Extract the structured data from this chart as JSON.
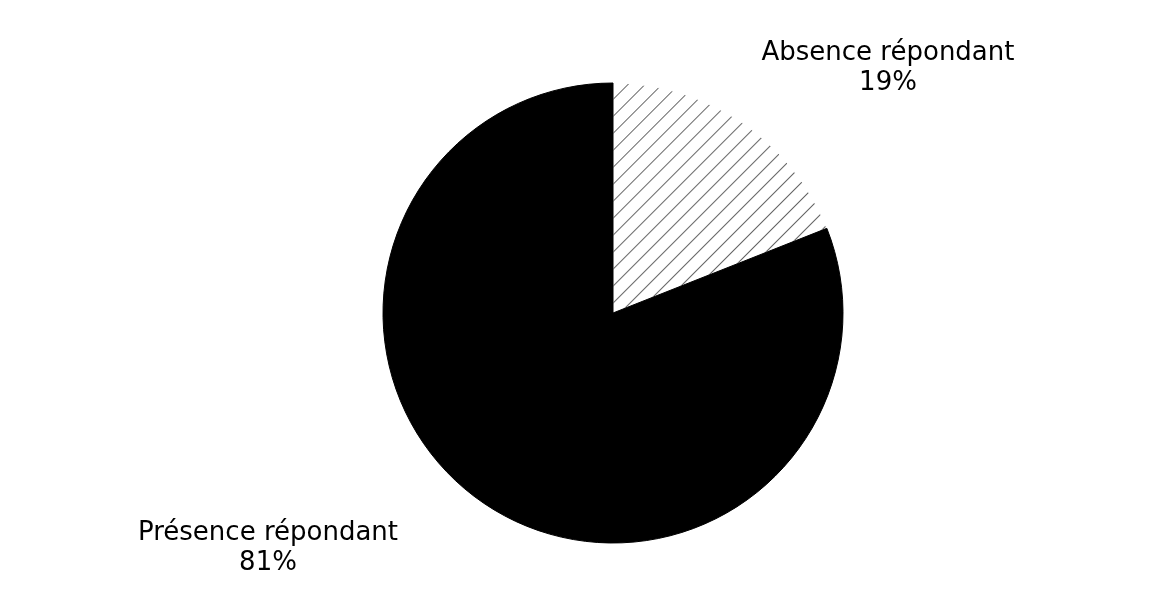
{
  "chart_data": {
    "type": "pie",
    "categories": [
      "Absence répondant",
      "Présence répondant"
    ],
    "values": [
      19,
      81
    ],
    "value_labels": [
      "19%",
      "81%"
    ],
    "colors": [
      "#ffffff",
      "#000000"
    ],
    "legend": false
  }
}
